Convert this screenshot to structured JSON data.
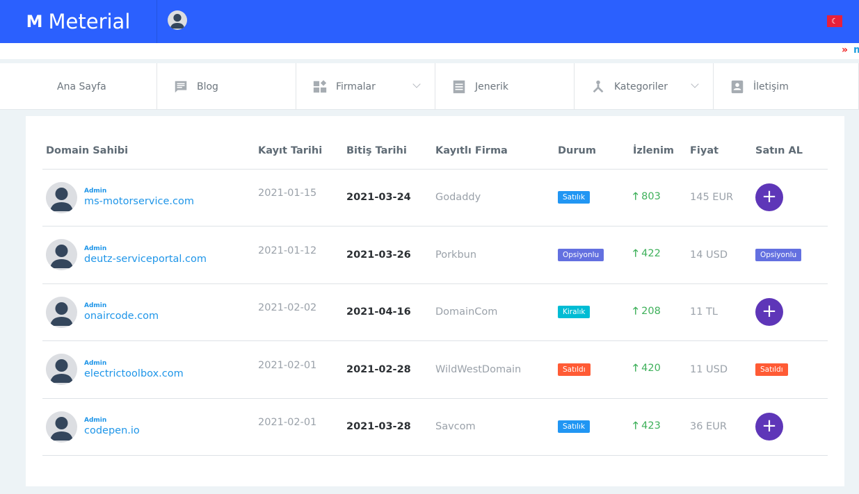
{
  "header": {
    "brand": "Meterial",
    "flag_icon": "turkey-flag-icon"
  },
  "ticker": {
    "text": "m"
  },
  "nav": [
    {
      "label": "Ana Sayfa",
      "icon": "",
      "dropdown": false
    },
    {
      "label": "Blog",
      "icon": "comment-icon",
      "dropdown": false
    },
    {
      "label": "Firmalar",
      "icon": "widgets-icon",
      "dropdown": true
    },
    {
      "label": "Jenerik",
      "icon": "document-icon",
      "dropdown": false
    },
    {
      "label": "Kategoriler",
      "icon": "hub-icon",
      "dropdown": true
    },
    {
      "label": "İletişim",
      "icon": "contact-icon",
      "dropdown": false
    }
  ],
  "table": {
    "headers": [
      "Domain Sahibi",
      "Kayıt Tarihi",
      "Bitiş Tarihi",
      "Kayıtlı Firma",
      "Durum",
      "İzlenim",
      "Fiyat",
      "Satın AL"
    ],
    "rows": [
      {
        "owner": "Admin",
        "domain": "ms-motorservice.com",
        "kayit": "2021-01-15",
        "bitis": "2021-03-24",
        "firma": "Godaddy",
        "durum": "Satılık",
        "durum_color": "#2196f3",
        "izlenim": "803",
        "fiyat": "145 EUR",
        "buy": "+",
        "buy_badge": false
      },
      {
        "owner": "Admin",
        "domain": "deutz-serviceportal.com",
        "kayit": "2021-01-12",
        "bitis": "2021-03-26",
        "firma": "Porkbun",
        "durum": "Opsiyonlu",
        "durum_color": "#6370e0",
        "izlenim": "422",
        "fiyat": "14 USD",
        "buy": "Opsiyonlu",
        "buy_badge": true
      },
      {
        "owner": "Admin",
        "domain": "onaircode.com",
        "kayit": "2021-02-02",
        "bitis": "2021-04-16",
        "firma": "DomainCom",
        "durum": "Kiralık",
        "durum_color": "#00bcd4",
        "izlenim": "208",
        "fiyat": "11 TL",
        "buy": "+",
        "buy_badge": false
      },
      {
        "owner": "Admin",
        "domain": "electrictoolbox.com",
        "kayit": "2021-02-01",
        "bitis": "2021-02-28",
        "firma": "WildWestDomain",
        "durum": "Satıldı",
        "durum_color": "#ff5b35",
        "izlenim": "420",
        "fiyat": "11 USD",
        "buy": "Satıldı",
        "buy_badge": true
      },
      {
        "owner": "Admin",
        "domain": "codepen.io",
        "kayit": "2021-02-01",
        "bitis": "2021-03-28",
        "firma": "Savcom",
        "durum": "Satılık",
        "durum_color": "#2196f3",
        "izlenim": "423",
        "fiyat": "36 EUR",
        "buy": "+",
        "buy_badge": false
      }
    ]
  }
}
